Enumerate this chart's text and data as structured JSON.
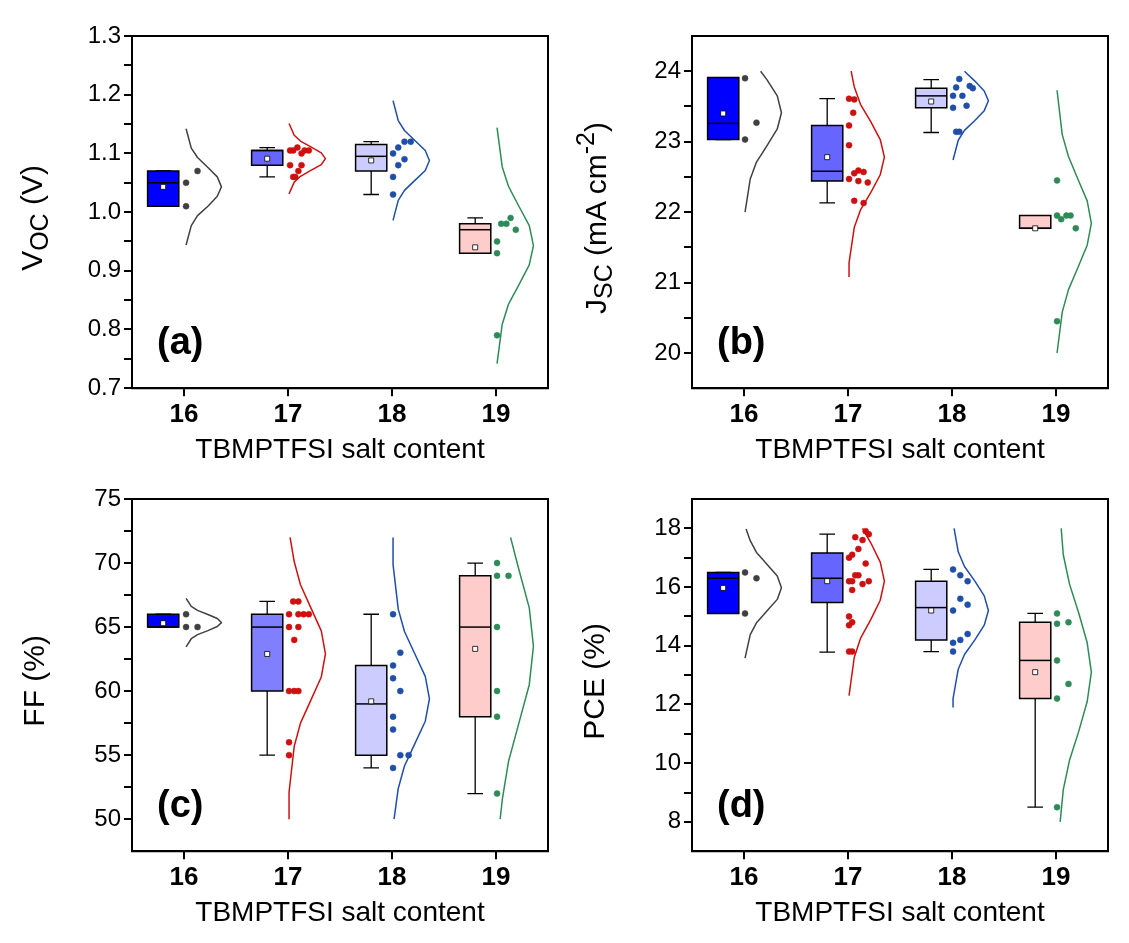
{
  "chart_data": [
    {
      "type": "box",
      "xlabel": "TBMPTFSI salt content",
      "ylabel": "V$_{OC}$ (V)",
      "annotations": [
        "(a)"
      ],
      "xlim": [
        15.5,
        19.5
      ],
      "xticks": [
        16,
        17,
        18,
        19
      ],
      "ylim": [
        0.7,
        1.3
      ],
      "yticks": [
        0.7,
        {
          "value": 0.75,
          "label": null
        },
        0.8,
        {
          "value": 0.85,
          "label": null
        },
        0.9,
        {
          "value": 0.95,
          "label": null
        },
        {
          "value": 1,
          "label": "1.0"
        },
        {
          "value": 1.05,
          "label": null
        },
        1.1,
        {
          "value": 1.15,
          "label": null
        },
        1.2,
        {
          "value": 1.25,
          "label": null
        },
        1.3
      ],
      "series": [
        {
          "type": "box",
          "x": [
            15.8,
            16.8,
            17.8,
            18.8
          ],
          "colors": [
            "#0000ff",
            "#6666ff",
            "#ccccff",
            "#ffcccc"
          ],
          "boxes": [
            {
              "low": 1.01,
              "q1": 1.01,
              "median": 1.05,
              "q3": 1.07,
              "high": 1.07,
              "mean": 1.043
            },
            {
              "low": 1.06,
              "q1": 1.08,
              "median": 1.105,
              "q3": 1.105,
              "high": 1.11,
              "mean": 1.091
            },
            {
              "low": 1.03,
              "q1": 1.07,
              "median": 1.095,
              "q3": 1.115,
              "high": 1.12,
              "mean": 1.088
            },
            {
              "low": 0.93,
              "q1": 0.93,
              "median": 0.97,
              "q3": 0.98,
              "high": 0.99,
              "mean": 0.94
            }
          ]
        },
        {
          "type": "scatter",
          "color": "#404040",
          "marker": "circle",
          "x": [
            16.02,
            16.02,
            16.13
          ],
          "values": [
            1.05,
            1.01,
            1.07
          ]
        },
        {
          "type": "scatter",
          "color": "#cc1111",
          "marker": "circle",
          "x": [
            17.02,
            17.05,
            17.09,
            17.13,
            17.16,
            17.2,
            17.02,
            17.13,
            17.1,
            17.05,
            17.07
          ],
          "values": [
            1.105,
            1.105,
            1.11,
            1.1,
            1.105,
            1.105,
            1.08,
            1.08,
            1.07,
            1.06,
            1.06
          ]
        },
        {
          "type": "scatter",
          "color": "#1f4fa8",
          "marker": "circle",
          "x": [
            18.01,
            18.06,
            18.12,
            18.18,
            18.06,
            18.12,
            18.01,
            18.01
          ],
          "values": [
            1.1,
            1.11,
            1.12,
            1.12,
            1.08,
            1.09,
            1.06,
            1.03
          ]
        },
        {
          "type": "scatter",
          "color": "#2e8b57",
          "marker": "circle",
          "x": [
            19.01,
            19.01,
            19.05,
            19.1,
            19.14,
            19.19,
            19.01
          ],
          "values": [
            0.95,
            0.93,
            0.98,
            0.98,
            0.99,
            0.97,
            0.79
          ]
        },
        {
          "type": "line",
          "color": "#404040",
          "x": [
            16.02,
            16.07,
            16.13,
            16.23,
            16.32,
            16.36,
            16.32,
            16.23,
            16.13,
            16.07,
            16.02
          ],
          "values": [
            0.944,
            0.977,
            0.994,
            1.01,
            1.027,
            1.043,
            1.06,
            1.076,
            1.093,
            1.109,
            1.142
          ]
        },
        {
          "type": "line",
          "color": "#cc1111",
          "x": [
            17.01,
            17.06,
            17.12,
            17.22,
            17.32,
            17.36,
            17.32,
            17.22,
            17.12,
            17.06,
            17.01
          ],
          "values": [
            1.031,
            1.051,
            1.061,
            1.071,
            1.081,
            1.091,
            1.101,
            1.111,
            1.121,
            1.131,
            1.151
          ]
        },
        {
          "type": "line",
          "color": "#1f4fa8",
          "x": [
            18.01,
            18.06,
            18.12,
            18.22,
            18.32,
            18.36,
            18.32,
            18.22,
            18.12,
            18.06,
            18.01
          ],
          "values": [
            0.986,
            1.02,
            1.037,
            1.054,
            1.071,
            1.088,
            1.105,
            1.122,
            1.139,
            1.156,
            1.19
          ]
        },
        {
          "type": "line",
          "color": "#2e8b57",
          "x": [
            19.01,
            19.06,
            19.12,
            19.22,
            19.32,
            19.36,
            19.32,
            19.22,
            19.12,
            19.06,
            19.01
          ],
          "values": [
            0.742,
            0.809,
            0.843,
            0.876,
            0.91,
            0.943,
            0.977,
            1.01,
            1.044,
            1.077,
            1.144
          ]
        }
      ]
    },
    {
      "type": "box",
      "xlabel": "TBMPTFSI salt content",
      "ylabel": "J$_{SC}$ (mA cm$^{-2}$)",
      "annotations": [
        "(b)"
      ],
      "xlim": [
        15.5,
        19.5
      ],
      "xticks": [
        16,
        17,
        18,
        19
      ],
      "ylim": [
        19.5,
        24.5
      ],
      "yticks": [
        20,
        {
          "value": 20.5,
          "label": null
        },
        21,
        {
          "value": 21.5,
          "label": null
        },
        22,
        {
          "value": 22.5,
          "label": null
        },
        23,
        {
          "value": 23.5,
          "label": null
        },
        24
      ],
      "series": [
        {
          "type": "box",
          "x": [
            15.8,
            16.8,
            17.8,
            18.8
          ],
          "colors": [
            "#0000ff",
            "#6666ff",
            "#ccccff",
            "#ffcccc"
          ],
          "boxes": [
            {
              "low": 23.03,
              "q1": 23.03,
              "median": 23.26,
              "q3": 23.91,
              "high": 23.91,
              "mean": 23.4
            },
            {
              "low": 22.13,
              "q1": 22.44,
              "median": 22.58,
              "q3": 23.23,
              "high": 23.61,
              "mean": 22.78
            },
            {
              "low": 23.13,
              "q1": 23.48,
              "median": 23.65,
              "q3": 23.76,
              "high": 23.88,
              "mean": 23.57
            },
            {
              "low": 21.77,
              "q1": 21.77,
              "median": 21.77,
              "q3": 21.95,
              "high": 21.95,
              "mean": 21.77
            }
          ]
        },
        {
          "type": "scatter",
          "color": "#404040",
          "marker": "circle",
          "x": [
            16.01,
            16.12,
            16.01
          ],
          "values": [
            23.9,
            23.27,
            23.03
          ]
        },
        {
          "type": "scatter",
          "color": "#cc1111",
          "marker": "circle",
          "x": [
            17.01,
            17.06,
            17.05,
            17.01,
            17.01,
            17.01,
            17.06,
            17.1,
            17.15,
            17.1,
            17.19,
            17.06,
            17.15
          ],
          "values": [
            23.61,
            23.6,
            23.41,
            23.23,
            22.95,
            22.47,
            22.55,
            22.59,
            22.57,
            22.44,
            22.42,
            22.16,
            22.13
          ]
        },
        {
          "type": "scatter",
          "color": "#1f4fa8",
          "marker": "circle",
          "x": [
            18.07,
            18.04,
            18.01,
            18.1,
            18.17,
            18.2,
            18.01,
            18.14,
            18.04,
            18.07
          ],
          "values": [
            23.89,
            23.77,
            23.65,
            23.65,
            23.79,
            23.76,
            23.48,
            23.51,
            23.14,
            23.14
          ]
        },
        {
          "type": "scatter",
          "color": "#2e8b57",
          "marker": "circle",
          "x": [
            19.01,
            19.01,
            19.05,
            19.1,
            19.14,
            19.19,
            19.01
          ],
          "values": [
            22.45,
            21.95,
            21.9,
            21.95,
            21.95,
            21.77,
            20.45
          ]
        },
        {
          "type": "line",
          "color": "#404040",
          "x": [
            16.01,
            16.06,
            16.12,
            16.22,
            16.32,
            16.36,
            16.32,
            16.22,
            16.16
          ],
          "values": [
            22,
            22.47,
            22.71,
            22.94,
            23.18,
            23.41,
            23.65,
            23.88,
            24
          ]
        },
        {
          "type": "line",
          "color": "#cc1111",
          "x": [
            17.01,
            17.01,
            17.06,
            17.12,
            17.22,
            17.31,
            17.35,
            17.31,
            17.22,
            17.12,
            17.06,
            17.03
          ],
          "values": [
            21.08,
            21.28,
            21.78,
            22.03,
            22.28,
            22.53,
            22.78,
            23.03,
            23.28,
            23.53,
            23.78,
            24
          ]
        },
        {
          "type": "line",
          "color": "#1f4fa8",
          "x": [
            18.01,
            18.06,
            18.12,
            18.22,
            18.31,
            18.35,
            18.31,
            18.22,
            18.12
          ],
          "values": [
            22.74,
            23.02,
            23.16,
            23.3,
            23.44,
            23.58,
            23.72,
            23.86,
            24
          ]
        },
        {
          "type": "line",
          "color": "#2e8b57",
          "x": [
            19.01,
            19.06,
            19.12,
            19.21,
            19.3,
            19.34,
            19.3,
            19.21,
            19.12,
            19.06,
            19.01
          ],
          "values": [
            20,
            20.58,
            20.9,
            21.21,
            21.53,
            21.84,
            22.16,
            22.47,
            22.79,
            23.1,
            23.73
          ]
        }
      ]
    },
    {
      "type": "box",
      "xlabel": "TBMPTFSI salt content",
      "ylabel": "FF (%)",
      "annotations": [
        "(c)"
      ],
      "xlim": [
        15.5,
        19.5
      ],
      "xticks": [
        16,
        17,
        18,
        19
      ],
      "ylim": [
        47.5,
        75
      ],
      "yticks": [
        50,
        {
          "value": 52.5,
          "label": null
        },
        55,
        {
          "value": 57.5,
          "label": null
        },
        60,
        {
          "value": 62.5,
          "label": null
        },
        65,
        {
          "value": 67.5,
          "label": null
        },
        70,
        {
          "value": 72.5,
          "label": null
        },
        75
      ],
      "series": [
        {
          "type": "box",
          "x": [
            15.8,
            16.8,
            17.8,
            18.8
          ],
          "colors": [
            "#0000ff",
            "#8080ff",
            "#ccccff",
            "#ffcccc"
          ],
          "boxes": [
            {
              "low": 65,
              "q1": 65,
              "median": 65,
              "q3": 66,
              "high": 66,
              "mean": 65.3
            },
            {
              "low": 55,
              "q1": 60,
              "median": 65,
              "q3": 66,
              "high": 67,
              "mean": 62.9
            },
            {
              "low": 54,
              "q1": 55,
              "median": 59,
              "q3": 62,
              "high": 66,
              "mean": 59.2
            },
            {
              "low": 52,
              "q1": 58,
              "median": 65,
              "q3": 69,
              "high": 70,
              "mean": 63.3
            }
          ]
        },
        {
          "type": "scatter",
          "color": "#404040",
          "marker": "circle",
          "x": [
            16.02,
            16.02,
            16.13
          ],
          "values": [
            66,
            65,
            65
          ]
        },
        {
          "type": "scatter",
          "color": "#cc1111",
          "marker": "circle",
          "x": [
            17.05,
            17.1,
            17.01,
            17.1,
            17.15,
            17.2,
            17.01,
            17.1,
            17.06,
            17.01,
            17.06,
            17.1,
            17.01,
            17.01
          ],
          "values": [
            67,
            67,
            66,
            66,
            66,
            66,
            65,
            65,
            64,
            60,
            60,
            60,
            56,
            55
          ]
        },
        {
          "type": "scatter",
          "color": "#1f4fa8",
          "marker": "circle",
          "x": [
            18.01,
            18.08,
            18.01,
            18.01,
            18.08,
            18.01,
            18.01,
            18.08,
            18.16,
            18.01
          ],
          "values": [
            66,
            63,
            62,
            61,
            60,
            58,
            57,
            55,
            55,
            54
          ]
        },
        {
          "type": "scatter",
          "color": "#2e8b57",
          "marker": "circle",
          "x": [
            19.01,
            19.01,
            19.12,
            19.01,
            19.01,
            19.01,
            19.01
          ],
          "values": [
            70,
            69,
            69,
            65,
            60,
            58,
            52
          ]
        },
        {
          "type": "line",
          "color": "#404040",
          "x": [
            16.02,
            16.07,
            16.13,
            16.23,
            16.32,
            16.36,
            16.32,
            16.23,
            16.13,
            16.07,
            16.02
          ],
          "values": [
            63.46,
            64.09,
            64.41,
            64.72,
            65.04,
            65.35,
            65.67,
            65.98,
            66.3,
            66.61,
            67.24
          ]
        },
        {
          "type": "line",
          "color": "#cc1111",
          "x": [
            17.01,
            17.01,
            17.06,
            17.12,
            17.22,
            17.32,
            17.36,
            17.32,
            17.22,
            17.12,
            17.06,
            17.02
          ],
          "values": [
            50,
            52.1,
            55.7,
            57.5,
            59.3,
            61.1,
            62.9,
            64.7,
            66.5,
            68.3,
            70.1,
            72
          ]
        },
        {
          "type": "line",
          "color": "#1f4fa8",
          "x": [
            18.02,
            18.06,
            18.12,
            18.22,
            18.32,
            18.36,
            18.32,
            18.22,
            18.12,
            18.06,
            18.01,
            18.01
          ],
          "values": [
            50,
            52.4,
            54.15,
            55.9,
            57.65,
            59.4,
            61.15,
            62.9,
            64.65,
            66.4,
            69.9,
            72
          ]
        },
        {
          "type": "line",
          "color": "#2e8b57",
          "x": [
            19.04,
            19.06,
            19.12,
            19.22,
            19.32,
            19.36,
            19.32,
            19.22,
            19.14
          ],
          "values": [
            50,
            51.5,
            54.5,
            57.5,
            60.5,
            63.5,
            66.5,
            69.5,
            72
          ]
        }
      ]
    },
    {
      "type": "box",
      "xlabel": "TBMPTFSI salt content",
      "ylabel": "PCE (%)",
      "annotations": [
        "(d)"
      ],
      "xlim": [
        15.5,
        19.5
      ],
      "xticks": [
        16,
        17,
        18,
        19
      ],
      "ylim": [
        7,
        19
      ],
      "yticks": [
        8,
        {
          "value": 9,
          "label": null
        },
        10,
        {
          "value": 11,
          "label": null
        },
        12,
        {
          "value": 13,
          "label": null
        },
        14,
        {
          "value": 15,
          "label": null
        },
        16,
        {
          "value": 17,
          "label": null
        },
        18
      ],
      "series": [
        {
          "type": "box",
          "x": [
            15.8,
            16.8,
            17.8,
            18.8
          ],
          "colors": [
            "#0000ff",
            "#6666ff",
            "#ccccff",
            "#ffcccc"
          ],
          "boxes": [
            {
              "low": 15.1,
              "q1": 15.1,
              "median": 16.3,
              "q3": 16.5,
              "high": 16.5,
              "mean": 15.97
            },
            {
              "low": 13.78,
              "q1": 15.47,
              "median": 16.3,
              "q3": 17.16,
              "high": 17.8,
              "mean": 16.2
            },
            {
              "low": 13.8,
              "q1": 14.2,
              "median": 15.3,
              "q3": 16.2,
              "high": 16.6,
              "mean": 15.2
            },
            {
              "low": 8.5,
              "q1": 12.2,
              "median": 13.5,
              "q3": 14.8,
              "high": 15.1,
              "mean": 13.1
            }
          ]
        },
        {
          "type": "scatter",
          "color": "#404040",
          "marker": "circle",
          "x": [
            16.01,
            16.12,
            16.01
          ],
          "values": [
            16.5,
            16.3,
            15.1
          ]
        },
        {
          "type": "scatter",
          "color": "#cc1111",
          "marker": "circle",
          "x": [
            17.07,
            17.14,
            17.17,
            17.2,
            17.1,
            17.01,
            17.04,
            17.17,
            17.07,
            17.1,
            17.01,
            17.04,
            17.14,
            17.2,
            17.04,
            17.01,
            17.04,
            17.01,
            17.01,
            17.04
          ],
          "values": [
            17.7,
            17.6,
            17.9,
            17.8,
            17.3,
            17,
            17.1,
            16.8,
            16.4,
            16.4,
            16.2,
            16.2,
            16.1,
            16.2,
            15.9,
            15,
            14.8,
            14.7,
            13.8,
            13.8
          ]
        },
        {
          "type": "scatter",
          "color": "#1f4fa8",
          "marker": "circle",
          "x": [
            18.01,
            18.08,
            18.15,
            18.08,
            18.15,
            18.01,
            18.01,
            18.08,
            18.15,
            18.01
          ],
          "values": [
            16.6,
            16.4,
            16.2,
            15.6,
            15.4,
            15.2,
            14.1,
            14.2,
            14.4,
            13.8
          ]
        },
        {
          "type": "scatter",
          "color": "#2e8b57",
          "marker": "circle",
          "x": [
            19.01,
            19.01,
            19.12,
            19.01,
            19.12,
            19.01,
            19.01
          ],
          "values": [
            15.1,
            14.75,
            14.8,
            13.5,
            12.7,
            12.2,
            8.5
          ]
        },
        {
          "type": "line",
          "color": "#404040",
          "x": [
            16.01,
            16.06,
            16.12,
            16.22,
            16.32,
            16.36,
            16.32,
            16.22,
            16.12,
            16.06,
            16.02
          ],
          "values": [
            13.58,
            14.38,
            14.78,
            15.18,
            15.58,
            15.98,
            16.38,
            16.78,
            17.18,
            17.58,
            17.98
          ]
        },
        {
          "type": "line",
          "color": "#cc1111",
          "x": [
            17.01,
            17.06,
            17.12,
            17.22,
            17.31,
            17.35,
            17.31,
            17.22,
            17.14
          ],
          "values": [
            12.3,
            13.6,
            14.25,
            14.9,
            15.55,
            16.2,
            16.85,
            17.5,
            18
          ]
        },
        {
          "type": "line",
          "color": "#1f4fa8",
          "x": [
            18.01,
            18.01,
            18.06,
            18.12,
            18.22,
            18.31,
            18.35,
            18.31,
            18.22,
            18.12,
            18.06,
            18.02
          ],
          "values": [
            11.9,
            12.2,
            13.2,
            13.7,
            14.2,
            14.7,
            15.2,
            15.7,
            16.2,
            16.7,
            17.2,
            18
          ]
        },
        {
          "type": "line",
          "color": "#2e8b57",
          "x": [
            19.04,
            19.07,
            19.13,
            19.22,
            19.3,
            19.34,
            19.3,
            19.22,
            19.13,
            19.07,
            19.05
          ],
          "values": [
            8,
            9.1,
            10.1,
            11.1,
            12.1,
            13.1,
            14.1,
            15.1,
            16.1,
            17.1,
            18
          ]
        }
      ]
    }
  ]
}
